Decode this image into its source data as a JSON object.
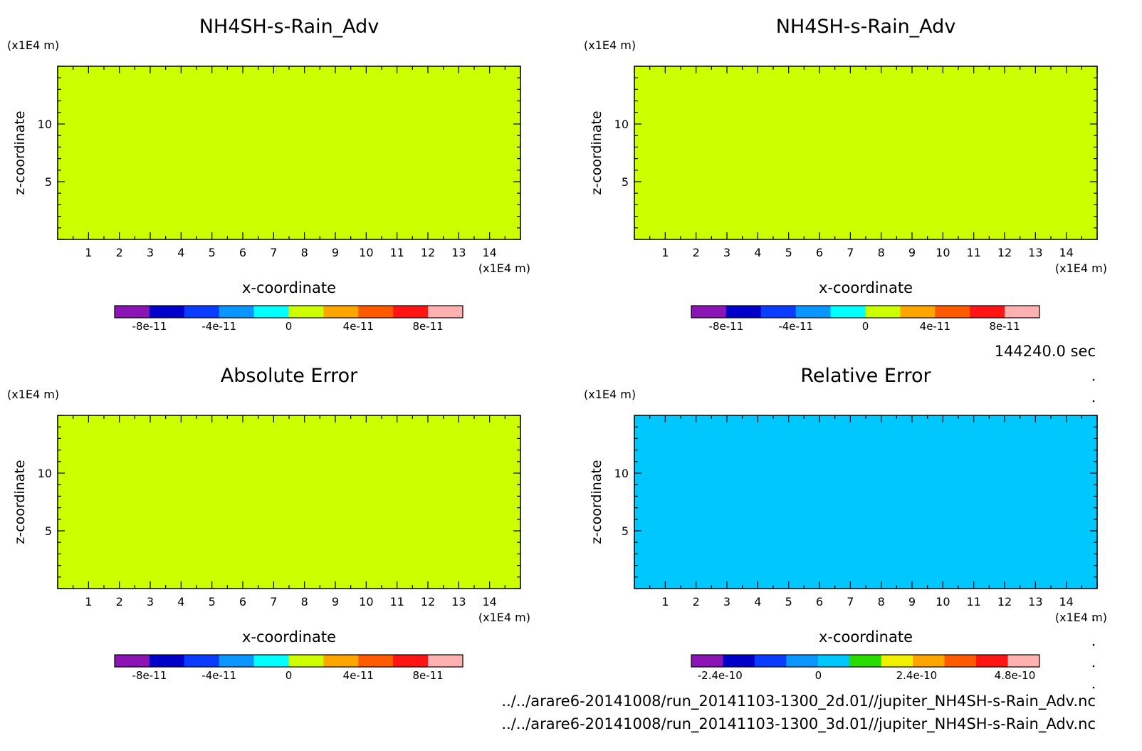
{
  "time_label": "144240.0 sec",
  "file_paths": [
    "../../arare6-20141008/run_20141103-1300_2d.01//jupiter_NH4SH-s-Rain_Adv.nc",
    "../../arare6-20141008/run_20141103-1300_3d.01//jupiter_NH4SH-s-Rain_Adv.nc"
  ],
  "chart_data": [
    {
      "type": "heatmap",
      "title": "NH4SH-s-Rain_Adv",
      "xlabel": "x-coordinate",
      "ylabel": "z-coordinate",
      "x_unit": "(x1E4 m)",
      "y_unit": "(x1E4 m)",
      "xlim": [
        0,
        15
      ],
      "ylim": [
        0,
        15
      ],
      "x_ticks": [
        1,
        2,
        3,
        4,
        5,
        6,
        7,
        8,
        9,
        10,
        11,
        12,
        13,
        14
      ],
      "y_ticks": [
        5,
        10
      ],
      "dominant_levels": [
        0,
        2e-11
      ],
      "colorbar": {
        "colors": [
          "#8a14b4",
          "#0000c8",
          "#0a3cff",
          "#0a96ff",
          "#00ffff",
          "#ccff00",
          "#ffa500",
          "#ff5a00",
          "#ff1414",
          "#ffb0b0"
        ],
        "tick_values": [
          -8e-11,
          -4e-11,
          0,
          4e-11,
          8e-11
        ],
        "tick_labels": [
          "-8e-11",
          "-4e-11",
          "0",
          "4e-11",
          "8e-11"
        ],
        "range": [
          -1e-10,
          1e-10
        ]
      }
    },
    {
      "type": "heatmap",
      "title": "NH4SH-s-Rain_Adv",
      "xlabel": "x-coordinate",
      "ylabel": "z-coordinate",
      "x_unit": "(x1E4 m)",
      "y_unit": "(x1E4 m)",
      "xlim": [
        0,
        15
      ],
      "ylim": [
        0,
        15
      ],
      "x_ticks": [
        1,
        2,
        3,
        4,
        5,
        6,
        7,
        8,
        9,
        10,
        11,
        12,
        13,
        14
      ],
      "y_ticks": [
        5,
        10
      ],
      "dominant_levels": [
        0,
        2e-11
      ],
      "colorbar": {
        "colors": [
          "#8a14b4",
          "#0000c8",
          "#0a3cff",
          "#0a96ff",
          "#00ffff",
          "#ccff00",
          "#ffa500",
          "#ff5a00",
          "#ff1414",
          "#ffb0b0"
        ],
        "tick_values": [
          -8e-11,
          -4e-11,
          0,
          4e-11,
          8e-11
        ],
        "tick_labels": [
          "-8e-11",
          "-4e-11",
          "0",
          "4e-11",
          "8e-11"
        ],
        "range": [
          -1e-10,
          1e-10
        ]
      }
    },
    {
      "type": "heatmap",
      "title": "Absolute Error",
      "xlabel": "x-coordinate",
      "ylabel": "z-coordinate",
      "x_unit": "(x1E4 m)",
      "y_unit": "(x1E4 m)",
      "xlim": [
        0,
        15
      ],
      "ylim": [
        0,
        15
      ],
      "x_ticks": [
        1,
        2,
        3,
        4,
        5,
        6,
        7,
        8,
        9,
        10,
        11,
        12,
        13,
        14
      ],
      "y_ticks": [
        5,
        10
      ],
      "dominant_levels": [
        0,
        2e-11
      ],
      "colorbar": {
        "colors": [
          "#8a14b4",
          "#0000c8",
          "#0a3cff",
          "#0a96ff",
          "#00ffff",
          "#ccff00",
          "#ffa500",
          "#ff5a00",
          "#ff1414",
          "#ffb0b0"
        ],
        "tick_values": [
          -8e-11,
          -4e-11,
          0,
          4e-11,
          8e-11
        ],
        "tick_labels": [
          "-8e-11",
          "-4e-11",
          "0",
          "4e-11",
          "8e-11"
        ],
        "range": [
          -1e-10,
          1e-10
        ]
      }
    },
    {
      "type": "heatmap",
      "title": "Relative Error",
      "xlabel": "x-coordinate",
      "ylabel": "z-coordinate",
      "x_unit": "(x1E4 m)",
      "y_unit": "(x1E4 m)",
      "xlim": [
        0,
        15
      ],
      "ylim": [
        0,
        15
      ],
      "x_ticks": [
        1,
        2,
        3,
        4,
        5,
        6,
        7,
        8,
        9,
        10,
        11,
        12,
        13,
        14
      ],
      "y_ticks": [
        5,
        10
      ],
      "dominant_levels": [
        0,
        6e-11
      ],
      "colorbar": {
        "colors": [
          "#8a14b4",
          "#0000c8",
          "#0a3cff",
          "#0a96ff",
          "#00c8ff",
          "#28dc00",
          "#f0f000",
          "#ffa500",
          "#ff5a00",
          "#ff1414",
          "#ffb0b0"
        ],
        "tick_values": [
          -2.4e-10,
          0,
          2.4e-10,
          4.8e-10
        ],
        "tick_labels": [
          "-2.4e-10",
          "0",
          "2.4e-10",
          "4.8e-10"
        ],
        "range": [
          -3.1e-10,
          5.4e-10
        ]
      }
    }
  ]
}
